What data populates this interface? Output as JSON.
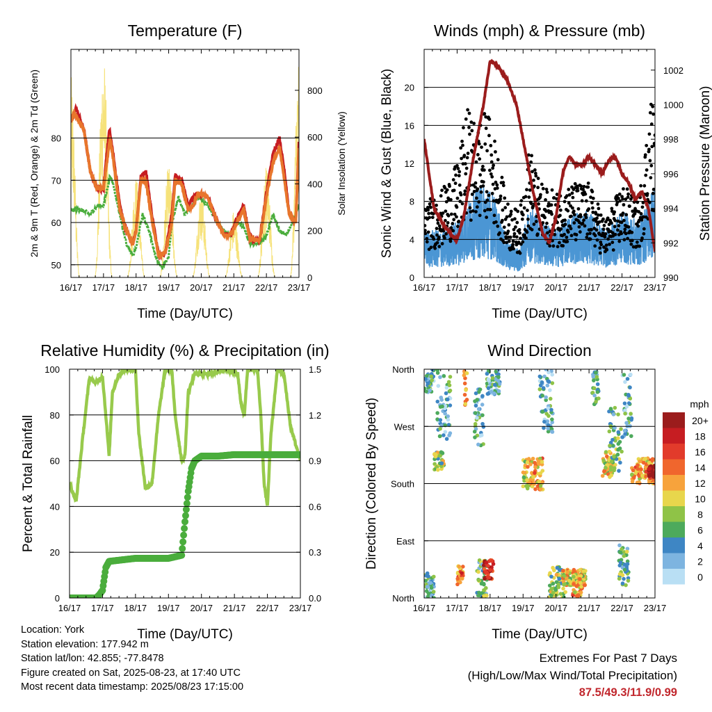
{
  "panels": {
    "temperature": {
      "title": "Temperature (F)",
      "xlabel": "Time (Day/UTC)",
      "ylabel_left": "2m & 9m T (Red, Orange) & 2m Td (Green)",
      "ylabel_right": "Solar Insolation (Yellow)"
    },
    "winds": {
      "title": "Winds (mph) & Pressure (mb)",
      "xlabel": "Time (Day/UTC)",
      "ylabel_left": "Sonic Wind & Gust (Blue, Black)",
      "ylabel_right": "Station Pressure (Maroon)"
    },
    "humidity": {
      "title": "Relative Humidity (%) & Precipitation (in)",
      "xlabel": "Time (Day/UTC)",
      "ylabel_left": "Percent & Total Rainfall"
    },
    "direction": {
      "title": "Wind Direction",
      "xlabel": "Time (Day/UTC)",
      "ylabel_left": "Direction (Colored By Speed)",
      "legend_title": "mph"
    }
  },
  "chart_data": [
    {
      "type": "line",
      "name": "temperature",
      "x_ticks": [
        "16/17",
        "17/17",
        "18/17",
        "19/17",
        "20/17",
        "21/17",
        "22/17",
        "23/17"
      ],
      "ylim": [
        47,
        101
      ],
      "y_ticks": [
        50,
        60,
        70,
        80
      ],
      "y2lim": [
        0,
        975
      ],
      "y2_ticks": [
        0,
        200,
        400,
        600,
        800
      ],
      "series": [
        {
          "color": "#e8762c",
          "points": [
            [
              0,
              84
            ],
            [
              0.1,
              86
            ],
            [
              0.4,
              82
            ],
            [
              0.6,
              72
            ],
            [
              0.8,
              68
            ],
            [
              1.0,
              68
            ],
            [
              1.1,
              74
            ],
            [
              1.2,
              80
            ],
            [
              1.3,
              75
            ],
            [
              1.5,
              63
            ],
            [
              1.7,
              58
            ],
            [
              1.9,
              55
            ],
            [
              2.0,
              58
            ],
            [
              2.15,
              70
            ],
            [
              2.3,
              70
            ],
            [
              2.5,
              60
            ],
            [
              2.7,
              52
            ],
            [
              2.9,
              53
            ],
            [
              3.1,
              60
            ],
            [
              3.2,
              70
            ],
            [
              3.4,
              69
            ],
            [
              3.6,
              63
            ],
            [
              3.75,
              64
            ],
            [
              3.9,
              67
            ],
            [
              4.2,
              66
            ],
            [
              4.5,
              60
            ],
            [
              4.7,
              57
            ],
            [
              4.9,
              57
            ],
            [
              5.1,
              60
            ],
            [
              5.3,
              63
            ],
            [
              5.5,
              56
            ],
            [
              5.8,
              56
            ],
            [
              6.0,
              66
            ],
            [
              6.2,
              74
            ],
            [
              6.4,
              78
            ],
            [
              6.55,
              70
            ],
            [
              6.7,
              62
            ],
            [
              6.9,
              60
            ],
            [
              7.0,
              78
            ]
          ]
        },
        {
          "color": "#c61d22",
          "points": [
            [
              0,
              84
            ],
            [
              0.15,
              87
            ],
            [
              0.4,
              82
            ],
            [
              0.6,
              72
            ],
            [
              0.8,
              68
            ],
            [
              1.0,
              68
            ],
            [
              1.1,
              76
            ],
            [
              1.18,
              82
            ],
            [
              1.3,
              76
            ],
            [
              1.5,
              64
            ],
            [
              1.7,
              58
            ],
            [
              1.9,
              55
            ],
            [
              2.0,
              58
            ],
            [
              2.15,
              71
            ],
            [
              2.3,
              72
            ],
            [
              2.5,
              61
            ],
            [
              2.7,
              52
            ],
            [
              2.9,
              53
            ],
            [
              3.1,
              62
            ],
            [
              3.2,
              71
            ],
            [
              3.4,
              70
            ],
            [
              3.6,
              64
            ],
            [
              3.75,
              66
            ],
            [
              3.9,
              67
            ],
            [
              4.2,
              66
            ],
            [
              4.5,
              60
            ],
            [
              4.7,
              57
            ],
            [
              4.9,
              57
            ],
            [
              5.1,
              61
            ],
            [
              5.3,
              64
            ],
            [
              5.5,
              56
            ],
            [
              5.8,
              56
            ],
            [
              6.0,
              67
            ],
            [
              6.2,
              76
            ],
            [
              6.4,
              80
            ],
            [
              6.55,
              72
            ],
            [
              6.7,
              62
            ],
            [
              6.9,
              60
            ],
            [
              7.0,
              79
            ]
          ]
        },
        {
          "color": "#4aad3c",
          "points": [
            [
              0,
              63
            ],
            [
              0.3,
              63
            ],
            [
              0.6,
              62
            ],
            [
              0.8,
              64
            ],
            [
              1.0,
              64
            ],
            [
              1.2,
              71
            ],
            [
              1.3,
              69
            ],
            [
              1.5,
              62
            ],
            [
              1.7,
              55
            ],
            [
              1.9,
              52
            ],
            [
              2.0,
              54
            ],
            [
              2.2,
              62
            ],
            [
              2.4,
              58
            ],
            [
              2.6,
              52
            ],
            [
              2.8,
              49
            ],
            [
              3.0,
              52
            ],
            [
              3.1,
              60
            ],
            [
              3.3,
              66
            ],
            [
              3.5,
              62
            ],
            [
              3.7,
              64
            ],
            [
              3.9,
              66
            ],
            [
              4.2,
              64
            ],
            [
              4.5,
              60
            ],
            [
              4.7,
              58
            ],
            [
              4.9,
              57
            ],
            [
              5.1,
              60
            ],
            [
              5.3,
              59
            ],
            [
              5.5,
              55
            ],
            [
              5.8,
              55
            ],
            [
              6.0,
              57
            ],
            [
              6.2,
              62
            ],
            [
              6.4,
              58
            ],
            [
              6.6,
              57
            ],
            [
              6.8,
              60
            ],
            [
              7.0,
              64
            ]
          ]
        }
      ]
    },
    {
      "type": "line",
      "name": "winds",
      "x_ticks": [
        "16/17",
        "17/17",
        "18/17",
        "19/17",
        "20/17",
        "21/17",
        "22/17",
        "23/17"
      ],
      "ylim": [
        0,
        24
      ],
      "y_ticks": [
        0,
        4,
        8,
        12,
        16,
        20
      ],
      "y2lim": [
        990,
        1003.2
      ],
      "y2_ticks": [
        990,
        992,
        994,
        996,
        998,
        1000,
        1002
      ],
      "series": [
        {
          "color": "#9b1c1c",
          "points": [
            [
              0,
              998
            ],
            [
              0.3,
              994
            ],
            [
              0.6,
              993
            ],
            [
              0.9,
              992.3
            ],
            [
              1.0,
              992.2
            ],
            [
              1.2,
              993.5
            ],
            [
              1.5,
              997
            ],
            [
              1.8,
              1000
            ],
            [
              2.0,
              1002.5
            ],
            [
              2.2,
              1002.3
            ],
            [
              2.5,
              1001.5
            ],
            [
              2.8,
              1000
            ],
            [
              3.0,
              998
            ],
            [
              3.3,
              995
            ],
            [
              3.6,
              992.5
            ],
            [
              3.8,
              992
            ],
            [
              4.0,
              993.5
            ],
            [
              4.2,
              996
            ],
            [
              4.4,
              997
            ],
            [
              4.6,
              996.5
            ],
            [
              4.8,
              996.5
            ],
            [
              5.0,
              997
            ],
            [
              5.2,
              996.5
            ],
            [
              5.4,
              996
            ],
            [
              5.6,
              996.8
            ],
            [
              5.8,
              997
            ],
            [
              6.0,
              996
            ],
            [
              6.2,
              995.5
            ],
            [
              6.4,
              994.5
            ],
            [
              6.6,
              995
            ],
            [
              6.8,
              994
            ],
            [
              7.0,
              991.5
            ]
          ]
        }
      ]
    },
    {
      "type": "line",
      "name": "humidity",
      "x_ticks": [
        "16/17",
        "17/17",
        "18/17",
        "19/17",
        "20/17",
        "21/17",
        "22/17",
        "23/17"
      ],
      "ylim": [
        0,
        100
      ],
      "y_ticks": [
        0,
        20,
        40,
        60,
        80,
        100
      ],
      "y2lim": [
        0,
        1.5
      ],
      "y2_ticks": [
        "0.0",
        "0.3",
        "0.6",
        "0.9",
        "1.2",
        "1.5"
      ],
      "series": [
        {
          "color": "#98ca4c",
          "points": [
            [
              0,
              50
            ],
            [
              0.2,
              42
            ],
            [
              0.4,
              70
            ],
            [
              0.6,
              96
            ],
            [
              0.8,
              94
            ],
            [
              1.0,
              97
            ],
            [
              1.1,
              80
            ],
            [
              1.2,
              62
            ],
            [
              1.3,
              90
            ],
            [
              1.5,
              98
            ],
            [
              1.7,
              100
            ],
            [
              2.0,
              100
            ],
            [
              2.1,
              72
            ],
            [
              2.3,
              48
            ],
            [
              2.5,
              50
            ],
            [
              2.7,
              80
            ],
            [
              2.9,
              100
            ],
            [
              3.1,
              100
            ],
            [
              3.2,
              80
            ],
            [
              3.4,
              60
            ],
            [
              3.5,
              62
            ],
            [
              3.6,
              90
            ],
            [
              3.8,
              98
            ],
            [
              4.2,
              98
            ],
            [
              4.5,
              99
            ],
            [
              4.8,
              100
            ],
            [
              5.1,
              98
            ],
            [
              5.2,
              85
            ],
            [
              5.3,
              80
            ],
            [
              5.4,
              100
            ],
            [
              5.7,
              100
            ],
            [
              5.8,
              80
            ],
            [
              5.9,
              50
            ],
            [
              6.0,
              40
            ],
            [
              6.1,
              70
            ],
            [
              6.3,
              100
            ],
            [
              6.5,
              98
            ],
            [
              6.7,
              75
            ],
            [
              6.9,
              65
            ],
            [
              7.0,
              60
            ]
          ]
        },
        {
          "color": "#4aad3c",
          "points": [
            [
              0,
              0.0
            ],
            [
              0.8,
              0.0
            ],
            [
              0.9,
              0.02
            ],
            [
              1.0,
              0.05
            ],
            [
              1.1,
              0.2
            ],
            [
              1.2,
              0.24
            ],
            [
              1.6,
              0.25
            ],
            [
              2.0,
              0.26
            ],
            [
              3.0,
              0.26
            ],
            [
              3.4,
              0.28
            ],
            [
              3.5,
              0.5
            ],
            [
              3.6,
              0.7
            ],
            [
              3.7,
              0.85
            ],
            [
              3.8,
              0.9
            ],
            [
              4.0,
              0.93
            ],
            [
              4.5,
              0.93
            ],
            [
              5.0,
              0.94
            ],
            [
              7.0,
              0.94
            ]
          ]
        }
      ]
    },
    {
      "type": "scatter",
      "name": "direction",
      "x_ticks": [
        "16/17",
        "17/17",
        "18/17",
        "19/17",
        "20/17",
        "21/17",
        "22/17",
        "23/17"
      ],
      "y_ticks": [
        "North",
        "East",
        "South",
        "West",
        "North"
      ],
      "legend": [
        "20+",
        "18",
        "16",
        "14",
        "12",
        "10",
        "8",
        "6",
        "4",
        "2",
        "0"
      ],
      "legend_colors": [
        "#9b1c1c",
        "#c61d22",
        "#e23b2b",
        "#f0662d",
        "#f7a33c",
        "#e8d64c",
        "#8fc347",
        "#4daa5c",
        "#3e86c4",
        "#7db4e0",
        "#b9dff4"
      ]
    }
  ],
  "station": {
    "location": "Location: York",
    "elevation": "Station elevation: 177.942 m",
    "latlon": "Station lat/lon: 42.855; -77.8478",
    "created": "Figure created on Sat, 2025-08-23, at 17:40 UTC",
    "recent": "Most recent data timestamp: 2025/08/23 17:15:00"
  },
  "extremes": {
    "line1": "Extremes For Past 7 Days",
    "line2": "(High/Low/Max Wind/Total Precipitation)",
    "values": "87.5/49.3/11.9/0.99"
  }
}
